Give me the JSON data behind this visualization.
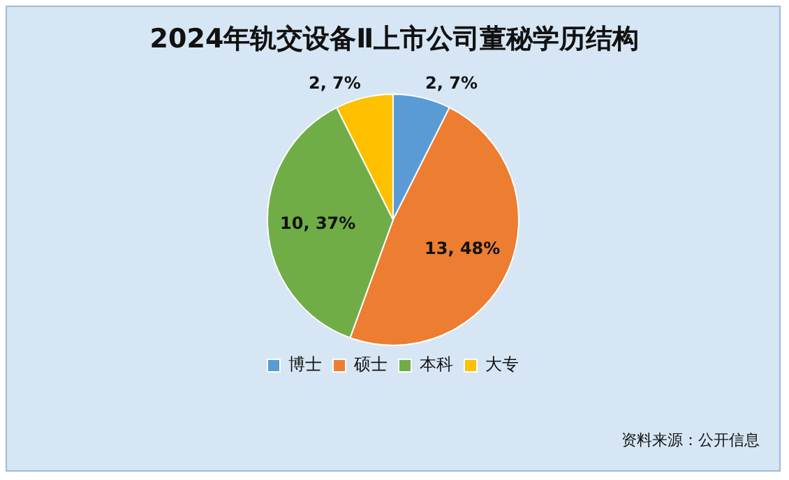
{
  "chart_data": {
    "type": "pie",
    "title": "2024年轨交设备Ⅱ上市公司董秘学历结构",
    "categories": [
      "博士",
      "硕士",
      "本科",
      "大专"
    ],
    "values": [
      2,
      13,
      10,
      2
    ],
    "colors": [
      "#5b9bd5",
      "#ed7d31",
      "#70ad47",
      "#ffc000"
    ],
    "value_labels": [
      "2, 7%",
      "13, 48%",
      "10, 37%",
      "2, 7%"
    ],
    "legend": "bottom",
    "annotations": [
      "资料来源：公开信息"
    ]
  }
}
